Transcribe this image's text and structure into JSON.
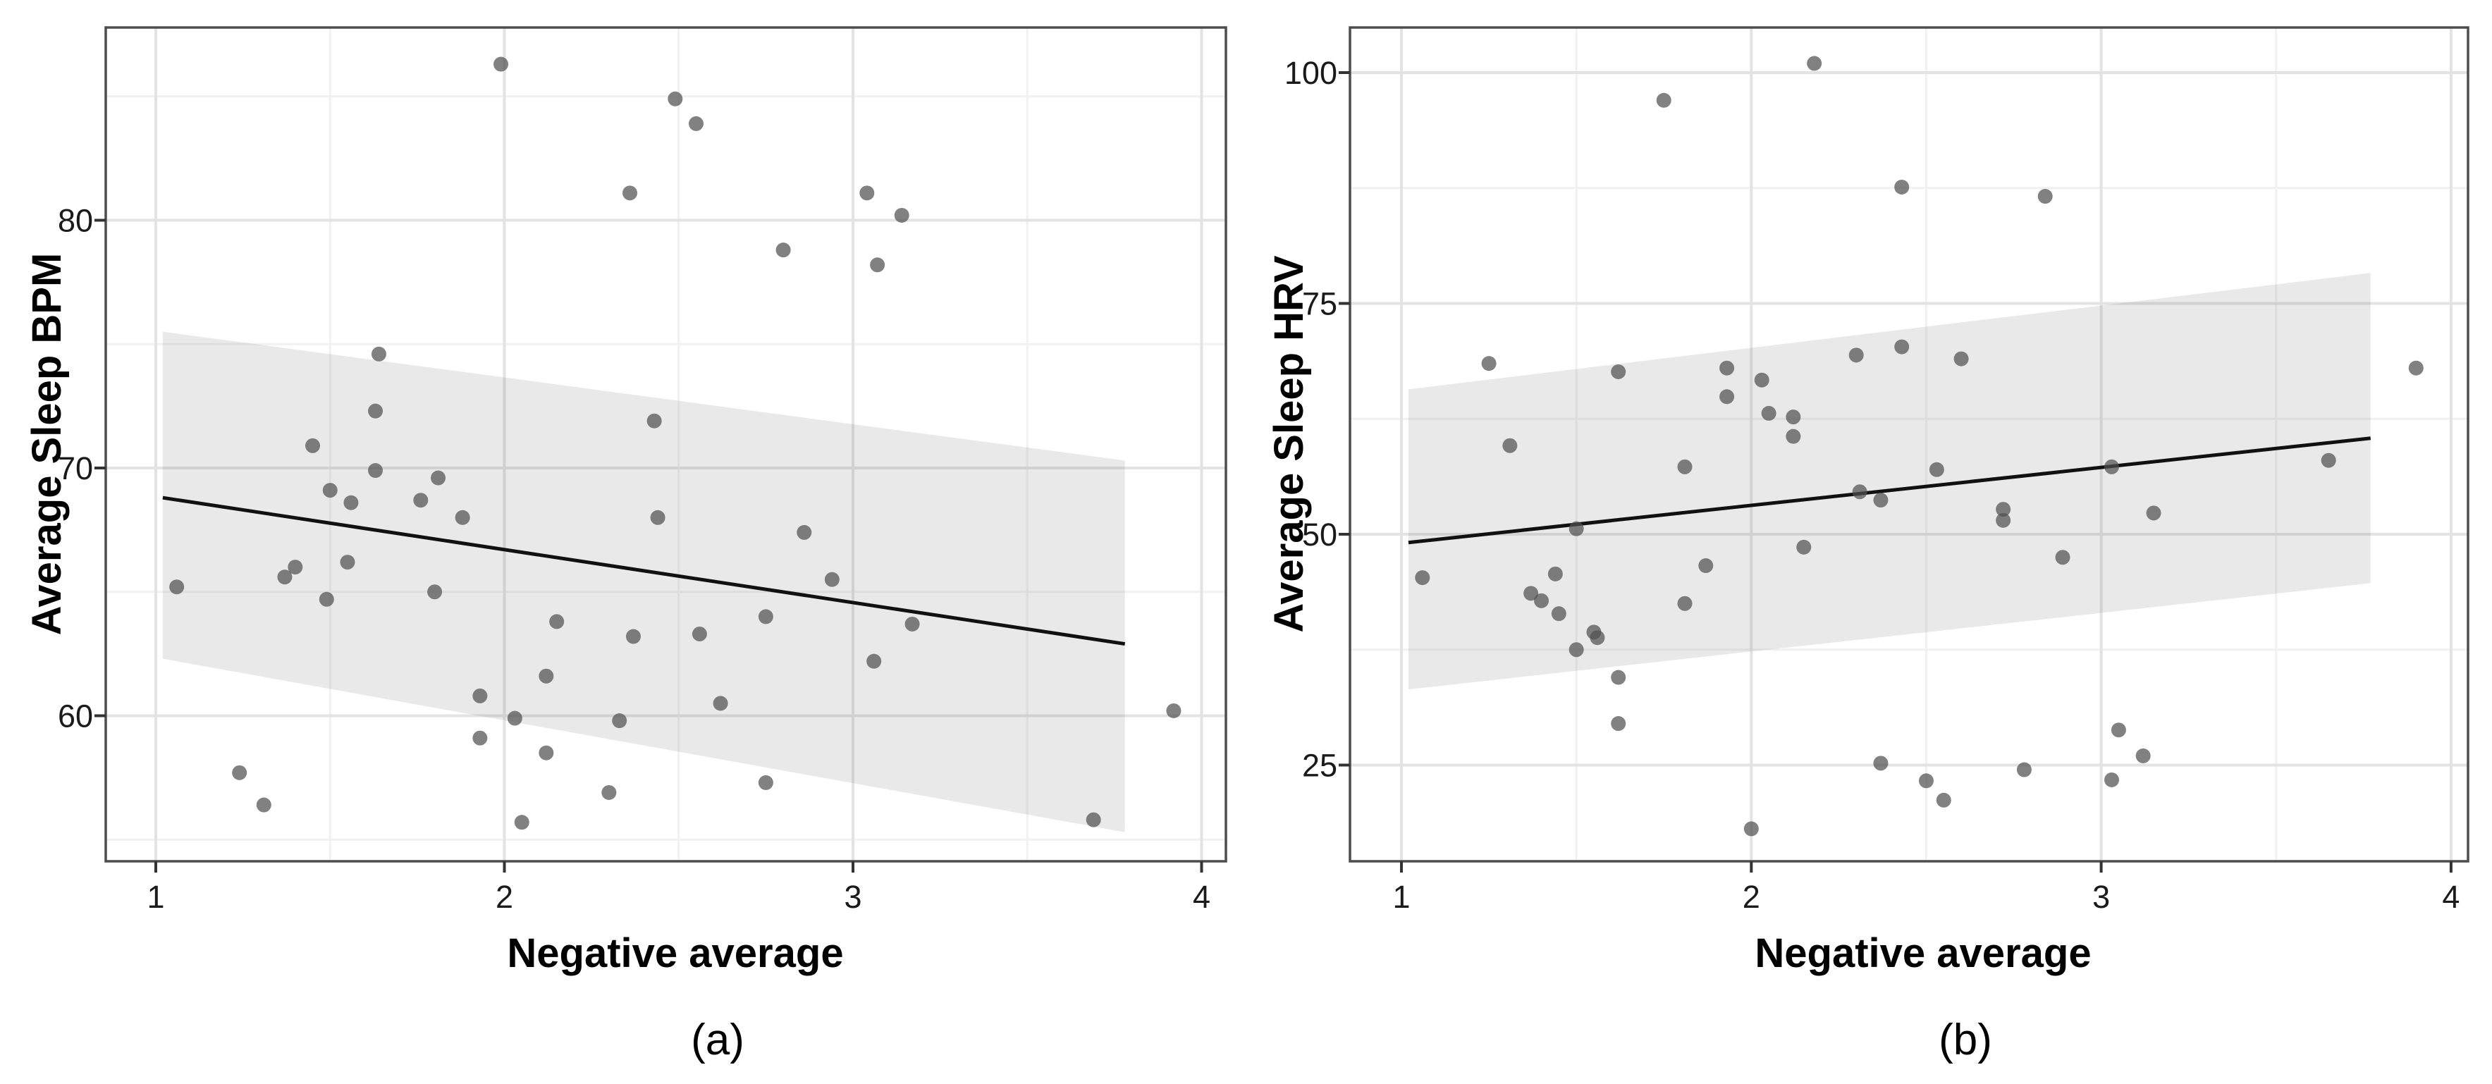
{
  "figure": {
    "caption_a": "(a)",
    "caption_b": "(b)"
  },
  "colors": {
    "background": "#ffffff",
    "panel_border": "#4d4d4d",
    "grid_major": "#e3e3e3",
    "grid_minor": "#f1f1f1",
    "ci_band": "rgba(125,125,125,0.17)",
    "regression_line": "#111111",
    "point": "rgba(80,80,80,0.72)",
    "tick_mark": "#333333",
    "tick_text": "#1a1a1a",
    "title_text": "#000000"
  },
  "chart_data": [
    {
      "id": "a",
      "type": "scatter",
      "title": "",
      "xlabel": "Negative average",
      "ylabel": "Average Sleep BPM",
      "caption": "(a)",
      "legend_position": "none",
      "grid": true,
      "xlim": [
        0.86,
        4.07
      ],
      "ylim": [
        54.1,
        87.8
      ],
      "x_ticks": [
        1,
        2,
        3,
        4
      ],
      "x_tick_labels": [
        "1",
        "2",
        "3",
        "4"
      ],
      "x_minor_ticks": [
        1.5,
        2.5,
        3.5
      ],
      "y_ticks": [
        60,
        70,
        80
      ],
      "y_tick_labels": [
        "60",
        "70",
        "80"
      ],
      "y_minor_ticks": [
        55,
        65,
        75,
        85
      ],
      "points": [
        [
          1.06,
          65.2
        ],
        [
          1.24,
          57.7
        ],
        [
          1.31,
          56.4
        ],
        [
          1.37,
          65.6
        ],
        [
          1.4,
          66.0
        ],
        [
          1.45,
          70.9
        ],
        [
          1.49,
          64.7
        ],
        [
          1.5,
          69.1
        ],
        [
          1.55,
          66.2
        ],
        [
          1.56,
          68.6
        ],
        [
          1.63,
          69.9
        ],
        [
          1.63,
          72.3
        ],
        [
          1.64,
          74.6
        ],
        [
          1.76,
          68.7
        ],
        [
          1.8,
          65.0
        ],
        [
          1.81,
          69.6
        ],
        [
          1.88,
          68.0
        ],
        [
          1.93,
          59.1
        ],
        [
          1.93,
          60.8
        ],
        [
          1.99,
          86.3
        ],
        [
          2.03,
          59.9
        ],
        [
          2.05,
          55.7
        ],
        [
          2.12,
          58.5
        ],
        [
          2.12,
          61.6
        ],
        [
          2.15,
          63.8
        ],
        [
          2.3,
          56.9
        ],
        [
          2.33,
          59.8
        ],
        [
          2.36,
          81.1
        ],
        [
          2.37,
          63.2
        ],
        [
          2.43,
          71.9
        ],
        [
          2.44,
          68.0
        ],
        [
          2.49,
          84.9
        ],
        [
          2.55,
          83.9
        ],
        [
          2.56,
          63.3
        ],
        [
          2.62,
          60.5
        ],
        [
          2.75,
          57.3
        ],
        [
          2.75,
          64.0
        ],
        [
          2.8,
          78.8
        ],
        [
          2.86,
          67.4
        ],
        [
          2.94,
          65.5
        ],
        [
          3.04,
          81.1
        ],
        [
          3.06,
          62.2
        ],
        [
          3.07,
          78.2
        ],
        [
          3.14,
          80.2
        ],
        [
          3.17,
          63.7
        ],
        [
          3.69,
          55.8
        ],
        [
          3.92,
          60.2
        ]
      ],
      "regression": {
        "x1": 1.02,
        "y1": 68.8,
        "x2": 3.78,
        "y2": 62.9
      },
      "ci_band": {
        "x1": 1.02,
        "top1": 75.5,
        "bottom1": 62.3,
        "x2": 3.78,
        "top2": 70.3,
        "bottom2": 55.3
      }
    },
    {
      "id": "b",
      "type": "scatter",
      "title": "",
      "xlabel": "Negative average",
      "ylabel": "Average Sleep HRV",
      "caption": "(b)",
      "legend_position": "none",
      "grid": true,
      "xlim": [
        0.85,
        4.05
      ],
      "ylim": [
        14.8,
        105.2
      ],
      "x_ticks": [
        1,
        2,
        3,
        4
      ],
      "x_tick_labels": [
        "1",
        "2",
        "3",
        "4"
      ],
      "x_minor_ticks": [
        1.5,
        2.5,
        3.5
      ],
      "y_ticks": [
        25,
        50,
        75,
        100
      ],
      "y_tick_labels": [
        "25",
        "50",
        "75",
        "100"
      ],
      "y_minor_ticks": [
        37.5,
        62.5,
        87.5
      ],
      "points": [
        [
          1.06,
          45.3
        ],
        [
          1.25,
          68.5
        ],
        [
          1.31,
          59.6
        ],
        [
          1.37,
          43.6
        ],
        [
          1.4,
          42.8
        ],
        [
          1.44,
          45.7
        ],
        [
          1.45,
          41.4
        ],
        [
          1.5,
          50.6
        ],
        [
          1.5,
          37.5
        ],
        [
          1.55,
          39.4
        ],
        [
          1.56,
          38.8
        ],
        [
          1.62,
          34.5
        ],
        [
          1.62,
          29.5
        ],
        [
          1.62,
          67.6
        ],
        [
          1.75,
          97.0
        ],
        [
          1.81,
          57.3
        ],
        [
          1.81,
          42.5
        ],
        [
          1.87,
          46.6
        ],
        [
          1.93,
          64.9
        ],
        [
          1.93,
          68.0
        ],
        [
          2.0,
          18.1
        ],
        [
          2.03,
          66.7
        ],
        [
          2.05,
          63.1
        ],
        [
          2.12,
          60.6
        ],
        [
          2.12,
          62.7
        ],
        [
          2.15,
          48.6
        ],
        [
          2.18,
          101.0
        ],
        [
          2.3,
          69.4
        ],
        [
          2.31,
          54.6
        ],
        [
          2.37,
          25.2
        ],
        [
          2.37,
          53.7
        ],
        [
          2.43,
          70.3
        ],
        [
          2.43,
          87.6
        ],
        [
          2.5,
          23.3
        ],
        [
          2.53,
          57.0
        ],
        [
          2.55,
          21.2
        ],
        [
          2.6,
          69.0
        ],
        [
          2.72,
          51.5
        ],
        [
          2.72,
          52.7
        ],
        [
          2.78,
          24.5
        ],
        [
          2.84,
          86.6
        ],
        [
          2.89,
          47.5
        ],
        [
          3.03,
          23.4
        ],
        [
          3.03,
          57.3
        ],
        [
          3.05,
          28.8
        ],
        [
          3.12,
          26.0
        ],
        [
          3.15,
          52.3
        ],
        [
          3.65,
          58.0
        ],
        [
          3.9,
          68.0
        ]
      ],
      "regression": {
        "x1": 1.02,
        "y1": 49.1,
        "x2": 3.77,
        "y2": 60.4
      },
      "ci_band": {
        "x1": 1.02,
        "top1": 65.7,
        "bottom1": 33.2,
        "x2": 3.77,
        "top2": 78.3,
        "bottom2": 44.7
      }
    }
  ]
}
